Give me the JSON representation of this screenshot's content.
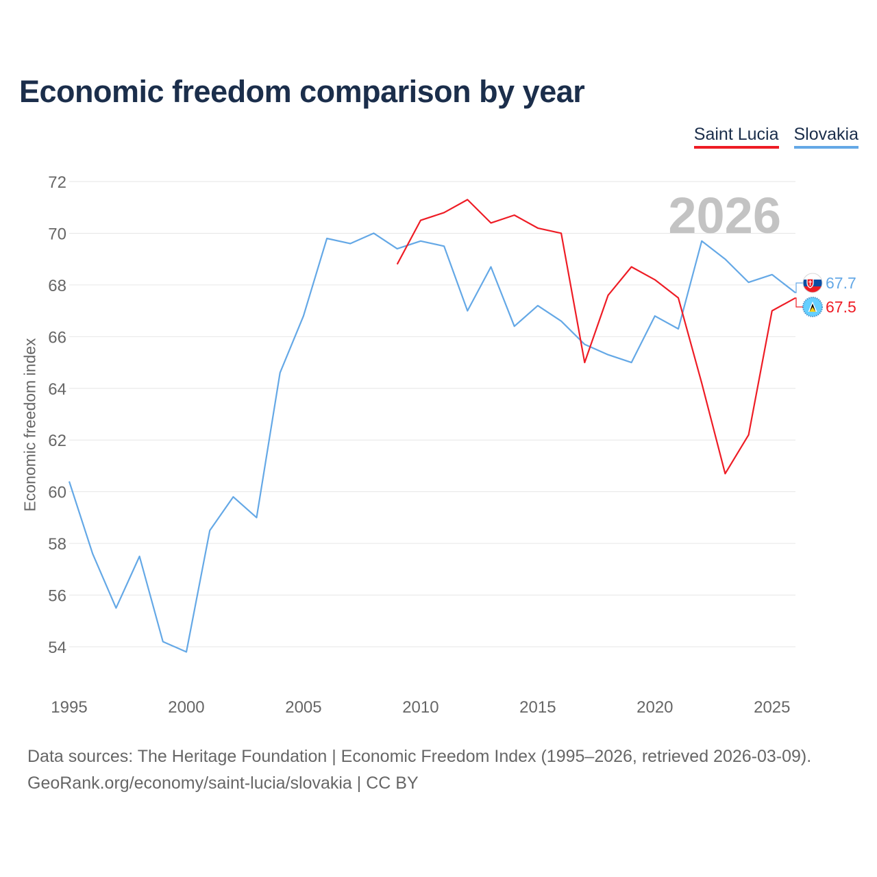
{
  "title": "Economic freedom comparison by year",
  "legend": {
    "saint_lucia": "Saint Lucia",
    "slovakia": "Slovakia"
  },
  "year_watermark": "2026",
  "y_axis_label": "Economic freedom index",
  "colors": {
    "saint_lucia": "#ee1c25",
    "slovakia": "#64a8e6",
    "title": "#1b2e4b",
    "grid": "#e6e6e6",
    "watermark": "#c3c3c3",
    "axis_text": "#666666"
  },
  "sources": {
    "line1": "Data sources: The Heritage Foundation | Economic Freedom Index (1995–2026, retrieved 2026-03-09).",
    "line2": "GeoRank.org/economy/saint-lucia/slovakia | CC BY"
  },
  "chart_data": {
    "type": "line",
    "title": "Economic freedom comparison by year",
    "xlabel": "",
    "ylabel": "Economic freedom index",
    "xlim": [
      1995,
      2026
    ],
    "ylim": [
      53,
      73
    ],
    "x_ticks": [
      1995,
      2000,
      2005,
      2010,
      2015,
      2020,
      2025
    ],
    "y_ticks": [
      54,
      56,
      58,
      60,
      62,
      64,
      66,
      68,
      70,
      72
    ],
    "series": [
      {
        "name": "Slovakia",
        "color": "#64a8e6",
        "end_label": "67.7",
        "icon": "slovakia-flag-icon",
        "x": [
          1995,
          1996,
          1997,
          1998,
          1999,
          2000,
          2001,
          2002,
          2003,
          2004,
          2005,
          2006,
          2007,
          2008,
          2009,
          2010,
          2011,
          2012,
          2013,
          2014,
          2015,
          2016,
          2017,
          2018,
          2019,
          2020,
          2021,
          2022,
          2023,
          2024,
          2025,
          2026
        ],
        "y": [
          60.4,
          57.6,
          55.5,
          57.5,
          54.2,
          53.8,
          58.5,
          59.8,
          59.0,
          64.6,
          66.8,
          69.8,
          69.6,
          70.0,
          69.4,
          69.7,
          69.5,
          67.0,
          68.7,
          66.4,
          67.2,
          66.6,
          65.7,
          65.3,
          65.0,
          66.8,
          66.3,
          69.7,
          69.0,
          68.1,
          68.4,
          67.7
        ]
      },
      {
        "name": "Saint Lucia",
        "color": "#ee1c25",
        "end_label": "67.5",
        "icon": "saint-lucia-flag-icon",
        "x": [
          2009,
          2010,
          2011,
          2012,
          2013,
          2014,
          2015,
          2016,
          2017,
          2018,
          2019,
          2020,
          2021,
          2022,
          2023,
          2024,
          2025,
          2026
        ],
        "y": [
          68.8,
          70.5,
          70.8,
          71.3,
          70.4,
          70.7,
          70.2,
          70.0,
          65.0,
          67.6,
          68.7,
          68.2,
          67.5,
          64.2,
          60.7,
          62.2,
          67.0,
          67.5
        ]
      }
    ]
  }
}
